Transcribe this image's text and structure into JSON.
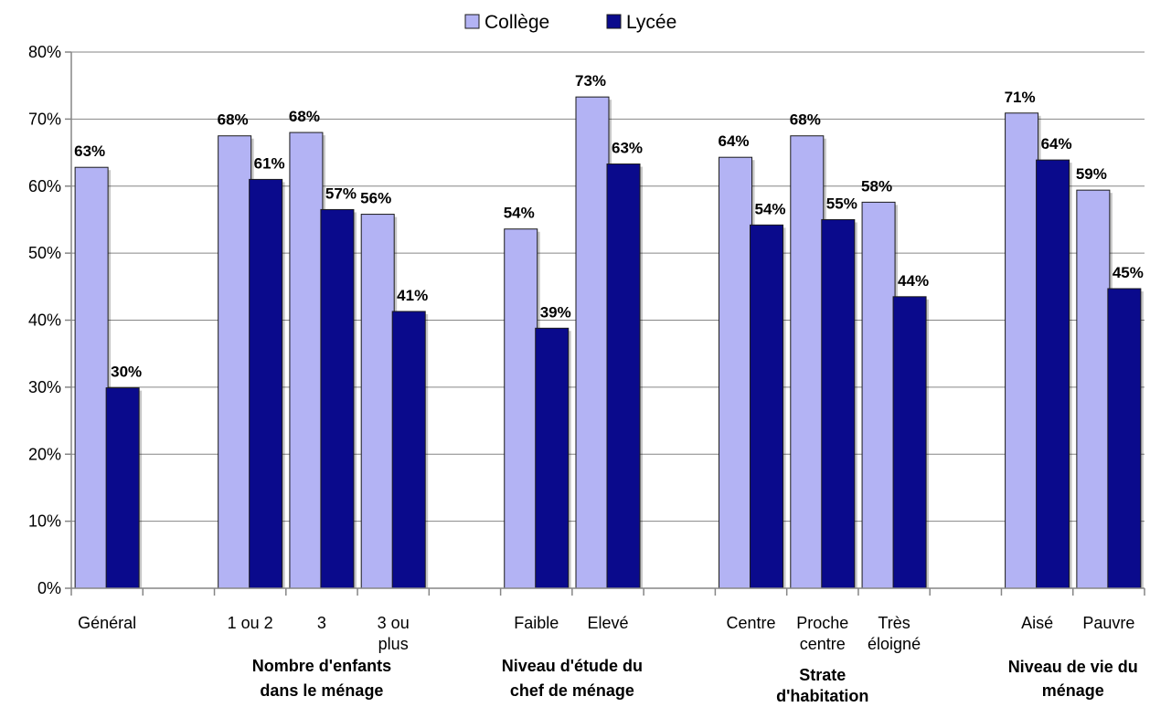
{
  "chart_data": {
    "type": "bar",
    "legend_position": "top",
    "grid": true,
    "ylim": [
      0,
      80
    ],
    "y_ticks": [
      "0%",
      "10%",
      "20%",
      "30%",
      "40%",
      "50%",
      "60%",
      "70%",
      "80%"
    ],
    "categories": [
      "Général",
      "1 ou 2",
      "3",
      "3 ou plus",
      "Faible",
      "Elevé",
      "Centre",
      "Proche centre",
      "Très éloigné",
      "Aisé",
      "Pauvre"
    ],
    "category_lines": [
      [
        "Général"
      ],
      [
        "1 ou 2"
      ],
      [
        "3"
      ],
      [
        "3 ou",
        "plus"
      ],
      [
        "Faible"
      ],
      [
        "Elevé"
      ],
      [
        "Centre"
      ],
      [
        "Proche",
        "centre"
      ],
      [
        "Très",
        "éloigné"
      ],
      [
        "Aisé"
      ],
      [
        "Pauvre"
      ]
    ],
    "groups": [
      {
        "lines": [
          "Nombre d'enfants",
          "dans le ménage"
        ],
        "categories": [
          "1 ou 2",
          "3",
          "3 ou plus"
        ]
      },
      {
        "lines": [
          "Niveau d'étude du",
          "chef de ménage"
        ],
        "categories": [
          "Faible",
          "Elevé"
        ]
      },
      {
        "lines": [
          "Strate",
          "d'habitation"
        ],
        "categories": [
          "Centre",
          "Proche centre",
          "Très éloigné"
        ]
      },
      {
        "lines": [
          "Niveau de vie du",
          "ménage"
        ],
        "categories": [
          "Aisé",
          "Pauvre"
        ]
      }
    ],
    "series": [
      {
        "name": "Collège",
        "color": "#b3b3f4",
        "values": [
          62.8,
          67.5,
          68.0,
          55.8,
          53.6,
          73.3,
          64.3,
          67.5,
          57.6,
          70.9,
          59.4
        ],
        "labels": [
          "63%",
          "68%",
          "68%",
          "56%",
          "54%",
          "73%",
          "64%",
          "68%",
          "58%",
          "71%",
          "59%"
        ]
      },
      {
        "name": "Lycée",
        "color": "#0a0a8c",
        "values": [
          29.9,
          61.0,
          56.5,
          41.3,
          38.8,
          63.3,
          54.2,
          55.0,
          43.5,
          63.9,
          44.7
        ],
        "labels": [
          "30%",
          "61%",
          "57%",
          "41%",
          "39%",
          "63%",
          "54%",
          "55%",
          "44%",
          "64%",
          "45%"
        ]
      }
    ]
  }
}
